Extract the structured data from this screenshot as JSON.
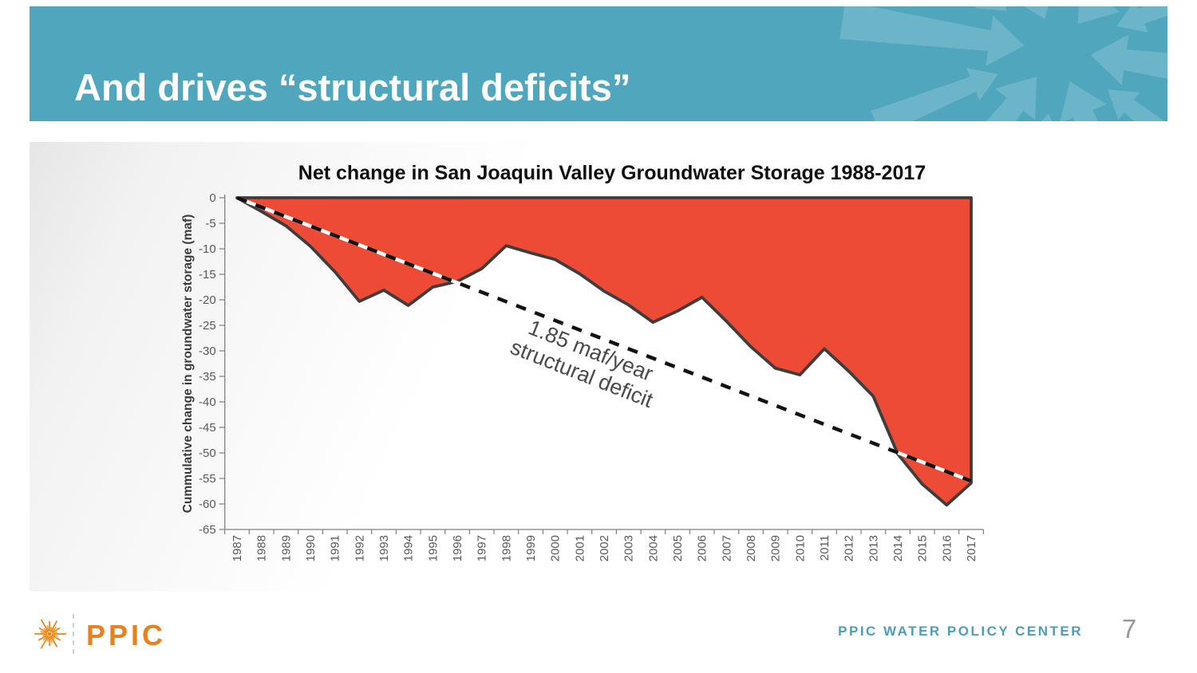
{
  "slide": {
    "title": "And drives “structural deficits”",
    "page_number": "7",
    "footer": {
      "brand": "PPIC",
      "center_label": "PPIC WATER POLICY CENTER"
    }
  },
  "chart_data": {
    "type": "area",
    "title": "Net change in San Joaquin Valley Groundwater Storage 1988-2017",
    "xlabel": "",
    "ylabel": "Cummulative change in groundwater storage (maf)",
    "ylim": [
      -65,
      0
    ],
    "ytick_step": 5,
    "grid": false,
    "legend_position": "none",
    "x": [
      1987,
      1988,
      1989,
      1990,
      1991,
      1992,
      1993,
      1994,
      1995,
      1996,
      1997,
      1998,
      1999,
      2000,
      2001,
      2002,
      2003,
      2004,
      2005,
      2006,
      2007,
      2008,
      2009,
      2010,
      2011,
      2012,
      2013,
      2014,
      2015,
      2016,
      2017
    ],
    "series": [
      {
        "name": "Cumulative change in groundwater storage (maf)",
        "values": [
          0,
          -2.7,
          -5.5,
          -9.5,
          -14.5,
          -20.3,
          -18.1,
          -21.1,
          -17.5,
          -16.4,
          -13.9,
          -9.4,
          -10.8,
          -12.1,
          -14.9,
          -18.3,
          -21.0,
          -24.4,
          -22.2,
          -19.5,
          -24.2,
          -29.2,
          -33.4,
          -34.7,
          -29.6,
          -34.0,
          -38.9,
          -50.2,
          -56.1,
          -60.2,
          -55.9
        ]
      }
    ],
    "trend_line": {
      "rate_maf_per_year": 1.85,
      "start": {
        "x": 1987,
        "y": 0
      },
      "end": {
        "x": 2017,
        "y": -55.5
      },
      "label_lines": [
        "1.85 maf/year",
        "structural deficit"
      ]
    },
    "colors": {
      "area_fill": "#EE4B37",
      "series_outline": "#3D3D3D",
      "trend_dash": "#111111",
      "trend_dash_alt": "#FFFFFF",
      "tick_label": "#595959",
      "axis": "#808080",
      "annotation": "#4a4a4a",
      "title": "#0f0f0f"
    }
  },
  "theme": {
    "banner_teal": "#4FA6BD",
    "ppic_orange": "#E8811E",
    "footer_teal": "#4D9DB8",
    "page_number_gray": "#98989a"
  }
}
